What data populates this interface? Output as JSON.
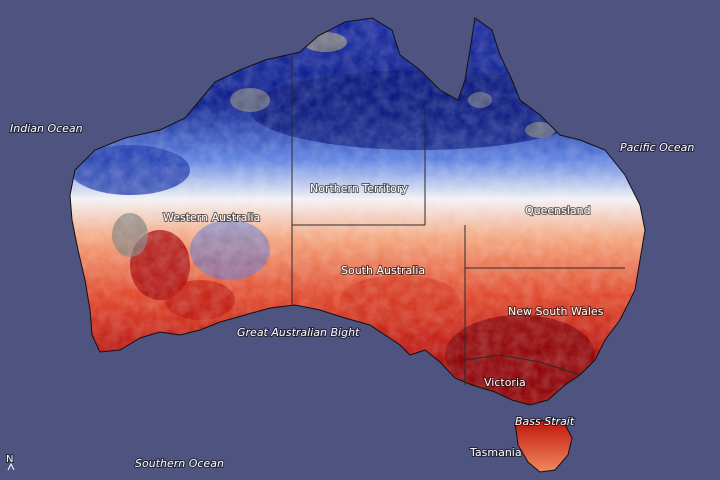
{
  "map": {
    "oceans": {
      "indian": "Indian Ocean",
      "pacific": "Pacific Ocean",
      "southern": "Southern Ocean",
      "bight": "Great Australian Bight",
      "bass": "Bass Strait"
    },
    "regions": {
      "wa": "Western Australia",
      "nt": "Northern Territory",
      "qld": "Queensland",
      "sa": "South Australia",
      "nsw": "New South Wales",
      "vic": "Victoria",
      "tas": "Tasmania"
    },
    "north_arrow": "N",
    "colors": {
      "ocean": "#4e5380",
      "no_data": "#808080",
      "cool_strong": "#0c1f8c",
      "cool": "#5b7fe0",
      "neutral": "#f2f2f4",
      "warm": "#f08a5d",
      "hot": "#c0140e",
      "hottest": "#8a0408"
    }
  }
}
